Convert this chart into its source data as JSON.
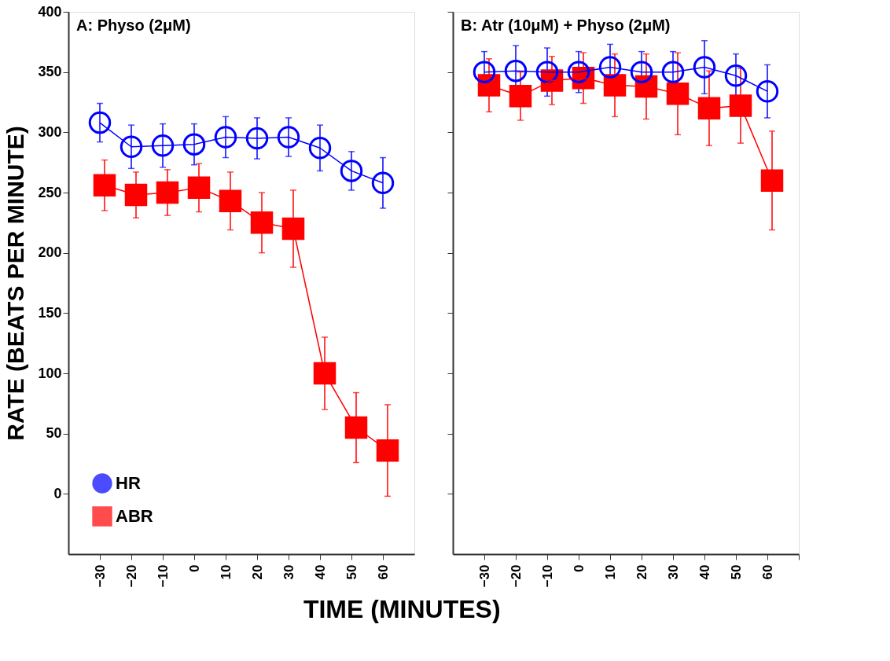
{
  "chart_data": [
    {
      "type": "line",
      "title": "A: Physo (2μM)",
      "xlabel": "TIME (MINUTES)",
      "ylabel": "RATE (BEATS PER MINUTE)",
      "xlim": [
        -40,
        70
      ],
      "xticks": [
        -30,
        -20,
        -10,
        0,
        10,
        20,
        30,
        40,
        50,
        60
      ],
      "ylim": [
        -50,
        400
      ],
      "yticks": [
        0,
        50,
        100,
        150,
        200,
        250,
        300,
        350,
        400
      ],
      "legend": "bottom left",
      "grid": false,
      "series": [
        {
          "name": "HR",
          "color": "#0000ff",
          "marker": "circle",
          "x": [
            -30,
            -20,
            -10,
            0,
            10,
            20,
            30,
            40,
            50,
            60
          ],
          "values": [
            308,
            288,
            289,
            290,
            296,
            295,
            296,
            287,
            268,
            258
          ],
          "errors": [
            16,
            18,
            18,
            17,
            17,
            17,
            16,
            19,
            16,
            21
          ]
        },
        {
          "name": "ABR",
          "color": "#ff0000",
          "marker": "square",
          "x": [
            -28.5,
            -18.5,
            -8.5,
            1.5,
            11.5,
            21.5,
            31.5,
            41.5,
            51.5,
            61.5
          ],
          "values": [
            256,
            248,
            250,
            254,
            243,
            225,
            220,
            100,
            55,
            36
          ],
          "errors": [
            21,
            19,
            19,
            20,
            24,
            25,
            32,
            30,
            29,
            38
          ]
        }
      ]
    },
    {
      "type": "line",
      "title": "B: Atr (10μM) + Physo (2μM)",
      "xlim": [
        -40,
        70
      ],
      "xticks": [
        -30,
        -20,
        -10,
        0,
        10,
        20,
        30,
        40,
        50,
        60,
        {
          "value": 70,
          "label": null
        }
      ],
      "ylim": [
        -50,
        400
      ],
      "yticks": [
        0,
        50,
        100,
        150,
        200,
        250,
        300,
        350,
        400
      ],
      "tick_labels": "x",
      "grid": false,
      "series": [
        {
          "color": "#0000ff",
          "marker": "circle",
          "x": [
            -30,
            -20,
            -10,
            0,
            10,
            20,
            30,
            40,
            50,
            60
          ],
          "values": [
            350,
            351,
            350,
            350,
            354,
            350,
            350,
            354,
            347,
            334
          ],
          "errors": [
            17,
            21,
            20,
            17,
            19,
            17,
            17,
            22,
            18,
            22
          ]
        },
        {
          "color": "#ff0000",
          "marker": "square",
          "x": [
            -28.5,
            -18.5,
            -8.5,
            1.5,
            11.5,
            21.5,
            31.5,
            41.5,
            51.5,
            61.5
          ],
          "values": [
            339,
            330,
            343,
            345,
            339,
            338,
            332,
            320,
            322,
            260
          ],
          "errors": [
            22,
            20,
            20,
            21,
            26,
            27,
            34,
            31,
            31,
            41
          ]
        }
      ]
    }
  ]
}
